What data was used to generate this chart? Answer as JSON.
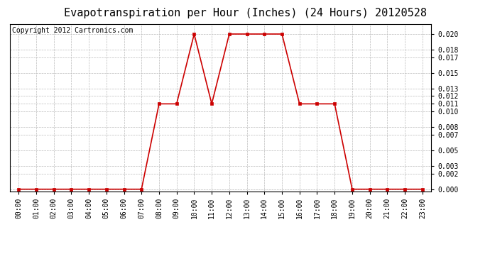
{
  "title": "Evapotranspiration per Hour (Inches) (24 Hours) 20120528",
  "copyright": "Copyright 2012 Cartronics.com",
  "x_labels": [
    "00:00",
    "01:00",
    "02:00",
    "03:00",
    "04:00",
    "05:00",
    "06:00",
    "07:00",
    "08:00",
    "09:00",
    "10:00",
    "11:00",
    "12:00",
    "13:00",
    "14:00",
    "15:00",
    "16:00",
    "17:00",
    "18:00",
    "19:00",
    "20:00",
    "21:00",
    "22:00",
    "23:00"
  ],
  "y_values": [
    0.0,
    0.0,
    0.0,
    0.0,
    0.0,
    0.0,
    0.0,
    0.0,
    0.011,
    0.011,
    0.02,
    0.011,
    0.02,
    0.02,
    0.02,
    0.02,
    0.011,
    0.011,
    0.011,
    0.0,
    0.0,
    0.0,
    0.0,
    0.0
  ],
  "y_ticks": [
    0.0,
    0.002,
    0.003,
    0.005,
    0.007,
    0.008,
    0.01,
    0.011,
    0.012,
    0.013,
    0.015,
    0.017,
    0.018,
    0.02
  ],
  "line_color": "#cc0000",
  "marker": "s",
  "marker_size": 3,
  "background_color": "#ffffff",
  "grid_color": "#bbbbbb",
  "title_fontsize": 11,
  "copyright_fontsize": 7,
  "tick_fontsize": 7,
  "ylim": [
    -0.0003,
    0.0213
  ]
}
